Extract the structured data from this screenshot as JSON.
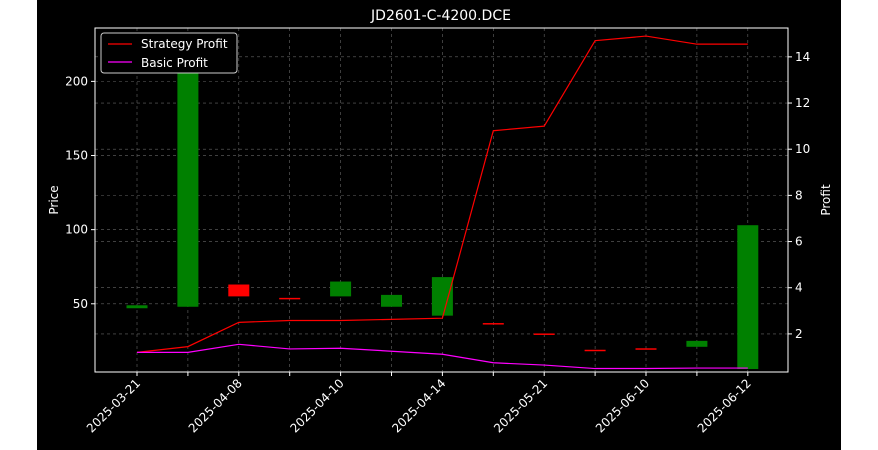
{
  "chart_data": {
    "type": "candlestick+line",
    "title": "JD2601-C-4200.DCE",
    "ylabel": "Price",
    "y2label": "Profit",
    "categories": [
      "2025-03-21",
      "",
      "2025-04-08",
      "",
      "2025-04-10",
      "",
      "2025-04-14",
      "",
      "2025-05-21",
      "",
      "2025-06-10",
      "",
      "2025-06-12"
    ],
    "ylim": [
      4,
      236
    ],
    "y2lim": [
      0.35,
      15.25
    ],
    "yticks": [
      50,
      100,
      150,
      200
    ],
    "y2ticks": [
      2,
      4,
      6,
      8,
      10,
      12,
      14
    ],
    "grid": true,
    "legend": {
      "position": "top-left",
      "entries": [
        "Strategy Profit",
        "Basic Profit"
      ]
    },
    "colors": {
      "background": "#000000",
      "up": "#008000",
      "down": "#ff0000",
      "strategy": "#ff0000",
      "basic": "#ff00ff",
      "text": "#ffffff",
      "grid": "#666666"
    },
    "candles": [
      {
        "open": 47,
        "close": 49,
        "dir": "up"
      },
      {
        "open": 48,
        "close": 228,
        "dir": "up"
      },
      {
        "open": 63,
        "close": 55,
        "dir": "down"
      },
      {
        "open": 54,
        "close": 53,
        "dir": "down"
      },
      {
        "open": 55,
        "close": 65,
        "dir": "up"
      },
      {
        "open": 48,
        "close": 56,
        "dir": "up"
      },
      {
        "open": 42,
        "close": 68,
        "dir": "up"
      },
      {
        "open": 37,
        "close": 36,
        "dir": "down"
      },
      {
        "open": 30,
        "close": 29,
        "dir": "down"
      },
      {
        "open": 19,
        "close": 18,
        "dir": "down"
      },
      {
        "open": 20,
        "close": 19,
        "dir": "down"
      },
      {
        "open": 21,
        "close": 25,
        "dir": "up"
      },
      {
        "open": 6,
        "close": 103,
        "dir": "up"
      }
    ],
    "series": [
      {
        "name": "Strategy Profit",
        "values": [
          1.2,
          1.45,
          2.5,
          2.58,
          2.58,
          2.63,
          2.68,
          10.8,
          11.0,
          14.7,
          14.9,
          14.55,
          14.55
        ]
      },
      {
        "name": "Basic Profit",
        "values": [
          1.2,
          1.2,
          1.55,
          1.35,
          1.38,
          1.25,
          1.12,
          0.75,
          0.65,
          0.5,
          0.5,
          0.52,
          0.52
        ]
      }
    ]
  }
}
